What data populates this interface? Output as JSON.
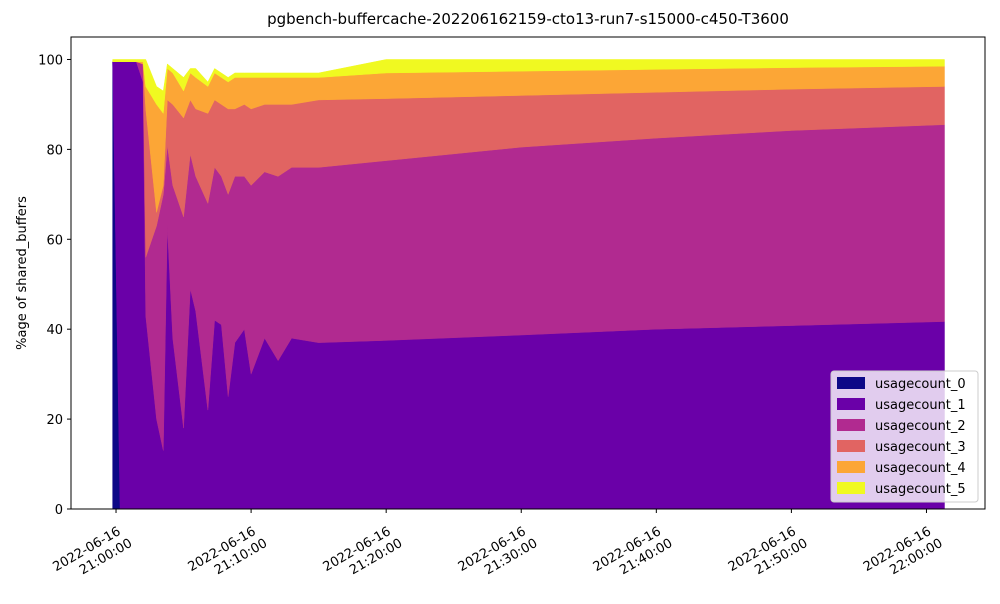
{
  "chart_data": {
    "type": "stacked_area",
    "title": "pgbench-buffercache-202206162159-cto13-run7-s15000-c450-T3600",
    "y_label": "%age of shared_buffers",
    "x": [
      "2022-06-16 20:59:45",
      "2022-06-16 21:00:18",
      "2022-06-16 21:01:30",
      "2022-06-16 21:02:00",
      "2022-06-16 21:02:12",
      "2022-06-16 21:03:00",
      "2022-06-16 21:03:30",
      "2022-06-16 21:03:48",
      "2022-06-16 21:04:12",
      "2022-06-16 21:05:00",
      "2022-06-16 21:05:30",
      "2022-06-16 21:05:54",
      "2022-06-16 21:06:48",
      "2022-06-16 21:07:18",
      "2022-06-16 21:07:48",
      "2022-06-16 21:08:18",
      "2022-06-16 21:08:48",
      "2022-06-16 21:09:30",
      "2022-06-16 21:10:00",
      "2022-06-16 21:11:00",
      "2022-06-16 21:12:00",
      "2022-06-16 21:13:00",
      "2022-06-16 21:15:00",
      "2022-06-16 21:20:00",
      "2022-06-16 21:30:00",
      "2022-06-16 21:40:00",
      "2022-06-16 21:50:00",
      "2022-06-16 22:01:20"
    ],
    "series": [
      {
        "name": "usagecount_0",
        "color": "#0d0887",
        "values": [
          99.5,
          0,
          0,
          0,
          0,
          0,
          0,
          0,
          0,
          0,
          0,
          0,
          0,
          0,
          0,
          0,
          0,
          0,
          0,
          0,
          0,
          0,
          0,
          0,
          0,
          0,
          0,
          0
        ]
      },
      {
        "name": "usagecount_1",
        "color": "#6a00a8",
        "values": [
          0,
          99.5,
          99.5,
          95,
          43,
          20,
          13,
          63,
          38,
          18,
          49,
          44,
          22,
          42,
          41,
          25,
          37,
          40,
          30,
          38,
          33,
          38,
          37,
          37.5,
          38.7,
          40,
          40.8,
          41.7
        ]
      },
      {
        "name": "usagecount_2",
        "color": "#b12a90",
        "values": [
          0,
          0,
          0,
          4,
          13,
          43,
          57,
          18,
          34,
          47,
          30,
          30,
          46,
          34,
          33,
          45,
          37,
          34,
          42,
          37,
          41,
          38,
          39,
          40,
          41.8,
          42.5,
          43.4,
          43.8
        ]
      },
      {
        "name": "usagecount_3",
        "color": "#e16462",
        "values": [
          0,
          0,
          0,
          0,
          33,
          3,
          2,
          10,
          18,
          22,
          12,
          15,
          20,
          15,
          16,
          19,
          15,
          16,
          17,
          15,
          16,
          14,
          15,
          13.8,
          11.5,
          10.2,
          9.2,
          8.5
        ]
      },
      {
        "name": "usagecount_4",
        "color": "#fca636",
        "values": [
          0,
          0,
          0,
          0.5,
          5,
          24,
          16,
          7,
          7,
          6,
          6,
          7,
          6,
          6,
          6,
          6,
          7,
          6,
          7,
          6,
          6,
          6,
          5,
          5.7,
          5.4,
          5.1,
          4.8,
          4.5
        ]
      },
      {
        "name": "usagecount_5",
        "color": "#f0f921",
        "values": [
          0.5,
          0.5,
          0.5,
          0.5,
          6,
          4,
          5,
          1,
          1,
          3,
          1,
          2,
          1,
          1,
          1,
          1,
          1,
          1,
          1,
          1,
          1,
          1,
          1,
          3,
          2.6,
          2.2,
          1.8,
          1.5
        ]
      }
    ],
    "xlim": [
      "2022-06-16 20:56:40",
      "2022-06-16 22:04:20"
    ],
    "xticks": [
      "2022-06-16 21:00:00",
      "2022-06-16 21:10:00",
      "2022-06-16 21:20:00",
      "2022-06-16 21:30:00",
      "2022-06-16 21:40:00",
      "2022-06-16 21:50:00",
      "2022-06-16 22:00:00"
    ],
    "ylim": [
      0,
      105
    ],
    "yticks": [
      0,
      20,
      40,
      60,
      80,
      100
    ],
    "legend": "lower right"
  }
}
